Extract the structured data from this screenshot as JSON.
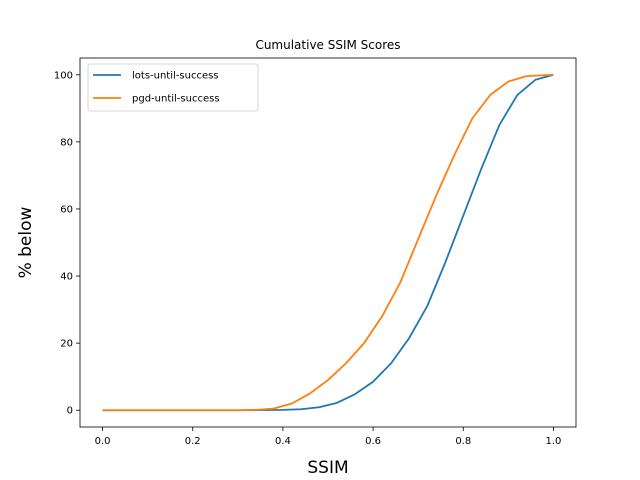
{
  "chart_data": {
    "type": "line",
    "title": "Cumulative SSIM Scores",
    "xlabel": "SSIM",
    "ylabel": "% below",
    "xlim": [
      -0.05,
      1.05
    ],
    "ylim": [
      -5,
      105
    ],
    "xticks": [
      0.0,
      0.2,
      0.4,
      0.6,
      0.8,
      1.0
    ],
    "xtick_labels": [
      "0.0",
      "0.2",
      "0.4",
      "0.6",
      "0.8",
      "1.0"
    ],
    "yticks": [
      0,
      20,
      40,
      60,
      80,
      100
    ],
    "ytick_labels": [
      "0",
      "20",
      "40",
      "60",
      "80",
      "100"
    ],
    "grid": false,
    "legend_position": "top-left",
    "series": [
      {
        "name": "lots-until-success",
        "color": "#1f77b4",
        "points": [
          [
            0.0,
            0
          ],
          [
            0.3,
            0
          ],
          [
            0.4,
            0.1
          ],
          [
            0.44,
            0.3
          ],
          [
            0.48,
            0.9
          ],
          [
            0.52,
            2.2
          ],
          [
            0.56,
            4.8
          ],
          [
            0.6,
            8.5
          ],
          [
            0.64,
            14
          ],
          [
            0.68,
            21.5
          ],
          [
            0.72,
            31
          ],
          [
            0.76,
            44
          ],
          [
            0.8,
            58
          ],
          [
            0.84,
            72
          ],
          [
            0.88,
            85
          ],
          [
            0.92,
            94
          ],
          [
            0.96,
            98.5
          ],
          [
            1.0,
            100
          ]
        ]
      },
      {
        "name": "pgd-until-success",
        "color": "#ff7f0e",
        "points": [
          [
            0.0,
            0
          ],
          [
            0.3,
            0
          ],
          [
            0.34,
            0.1
          ],
          [
            0.38,
            0.5
          ],
          [
            0.42,
            2
          ],
          [
            0.46,
            5
          ],
          [
            0.5,
            9
          ],
          [
            0.54,
            14
          ],
          [
            0.58,
            20
          ],
          [
            0.62,
            28
          ],
          [
            0.66,
            38
          ],
          [
            0.7,
            51
          ],
          [
            0.74,
            64
          ],
          [
            0.78,
            76
          ],
          [
            0.82,
            87
          ],
          [
            0.86,
            94
          ],
          [
            0.9,
            98
          ],
          [
            0.94,
            99.6
          ],
          [
            1.0,
            100
          ]
        ]
      }
    ]
  }
}
